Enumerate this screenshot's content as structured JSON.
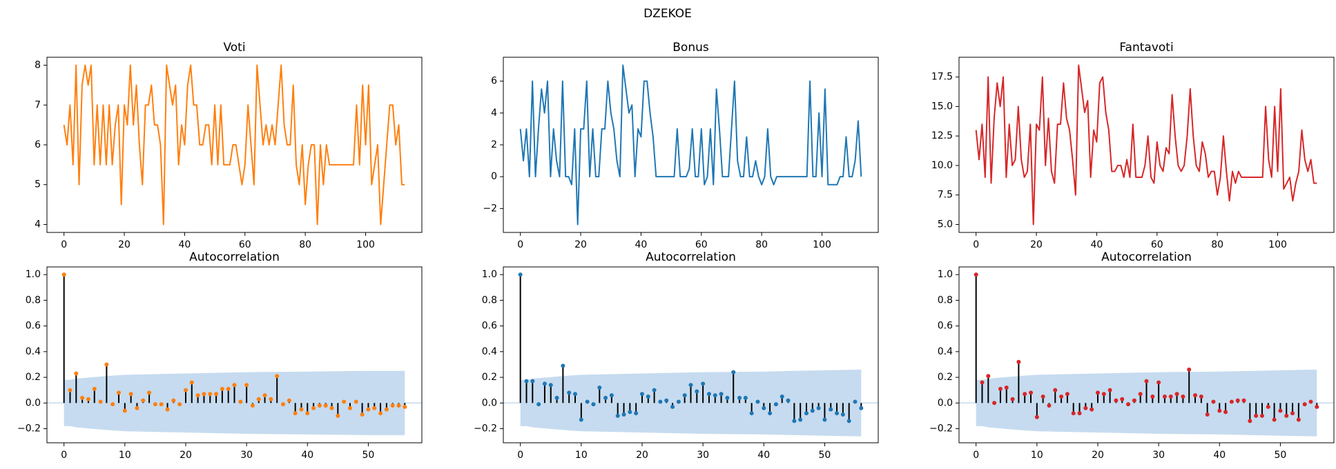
{
  "title": "DZEKOE",
  "chart_data": [
    {
      "type": "line",
      "title": "Voti",
      "color": "#ff7f0e",
      "x": [
        0,
        1,
        2,
        3,
        4,
        5,
        6,
        7,
        8,
        9,
        10,
        11,
        12,
        13,
        14,
        15,
        16,
        17,
        18,
        19,
        20,
        21,
        22,
        23,
        24,
        25,
        26,
        27,
        28,
        29,
        30,
        31,
        32,
        33,
        34,
        35,
        36,
        37,
        38,
        39,
        40,
        41,
        42,
        43,
        44,
        45,
        46,
        47,
        48,
        49,
        50,
        51,
        52,
        53,
        54,
        55,
        56,
        57,
        58,
        59,
        60,
        61,
        62,
        63,
        64,
        65,
        66,
        67,
        68,
        69,
        70,
        71,
        72,
        73,
        74,
        75,
        76,
        77,
        78,
        79,
        80,
        81,
        82,
        83,
        84,
        85,
        86,
        87,
        88,
        95,
        96,
        97,
        98,
        99,
        100,
        101,
        102,
        103,
        104,
        105,
        106,
        107,
        108,
        109,
        110,
        111,
        112,
        113
      ],
      "values": [
        6.5,
        6,
        7,
        5.5,
        8,
        5,
        7.5,
        8,
        7.5,
        8,
        5.5,
        7,
        5.5,
        7,
        5.5,
        7,
        5.5,
        6.5,
        7,
        4.5,
        7,
        6.5,
        8,
        6.5,
        7.5,
        6,
        5,
        7,
        7,
        7.5,
        6.5,
        6.5,
        6,
        4,
        8,
        7.5,
        7,
        7.5,
        5.5,
        6.5,
        6,
        7.5,
        8,
        7,
        7,
        6,
        6,
        6.5,
        6.5,
        5.5,
        7,
        5.5,
        7,
        5.5,
        5.5,
        5.5,
        6,
        6,
        5.5,
        5,
        5.5,
        7,
        6,
        5,
        8,
        7,
        6,
        6.5,
        6,
        6.5,
        6,
        7,
        8,
        6.5,
        6,
        6,
        7.5,
        5.5,
        5,
        6,
        4.5,
        5.5,
        6,
        6,
        4,
        6,
        5,
        6,
        5.5,
        5.5,
        5.5,
        7,
        5.5,
        7.5,
        6,
        7.5,
        5,
        5.5,
        6,
        4,
        5,
        6,
        7,
        7,
        6,
        6.5,
        5,
        5
      ],
      "xlim": [
        -5.65,
        118.65
      ],
      "xticks": [
        0,
        20,
        40,
        60,
        80,
        100
      ],
      "ylim": [
        3.8,
        8.2
      ],
      "yticks": [
        4,
        5,
        6,
        7,
        8
      ]
    },
    {
      "type": "line",
      "title": "Bonus",
      "color": "#1f77b4",
      "x": [
        0,
        1,
        2,
        3,
        4,
        5,
        6,
        7,
        8,
        9,
        10,
        11,
        12,
        13,
        14,
        15,
        16,
        17,
        18,
        19,
        20,
        21,
        22,
        23,
        24,
        25,
        26,
        27,
        28,
        29,
        30,
        31,
        32,
        33,
        34,
        35,
        36,
        37,
        38,
        39,
        40,
        41,
        42,
        43,
        44,
        45,
        46,
        47,
        48,
        49,
        50,
        51,
        52,
        53,
        54,
        55,
        56,
        57,
        58,
        59,
        60,
        61,
        62,
        63,
        64,
        65,
        66,
        67,
        68,
        69,
        70,
        71,
        72,
        73,
        74,
        75,
        76,
        77,
        78,
        79,
        80,
        81,
        82,
        83,
        84,
        85,
        86,
        87,
        88,
        95,
        96,
        97,
        98,
        99,
        100,
        101,
        102,
        103,
        104,
        105,
        106,
        107,
        108,
        109,
        110,
        111,
        112,
        113
      ],
      "values": [
        3,
        1,
        3,
        0,
        6,
        0,
        3,
        5.5,
        4,
        6,
        0,
        3,
        1,
        0,
        6,
        0,
        0,
        -0.5,
        3,
        -3,
        3,
        3,
        6,
        0,
        3,
        0,
        0,
        3,
        3,
        6,
        4,
        3,
        1,
        0,
        7,
        5.5,
        4,
        4.5,
        0,
        3,
        2.5,
        6,
        6,
        4,
        2.5,
        0,
        0,
        0,
        0,
        0,
        0,
        0,
        3,
        0,
        0,
        0,
        0.5,
        3,
        0,
        0,
        3,
        -0.5,
        0,
        3,
        -0.5,
        5.5,
        3,
        0,
        0,
        0,
        3,
        6,
        1,
        0,
        0,
        2.5,
        0,
        0,
        1,
        0,
        -0.5,
        0,
        3,
        0,
        -0.5,
        0,
        0,
        0,
        0,
        0,
        6,
        0,
        0,
        4,
        0,
        5.5,
        -0.5,
        -0.5,
        -0.5,
        -0.5,
        0,
        0,
        2.5,
        0,
        0,
        1,
        3.5,
        0
      ],
      "xlim": [
        -5.65,
        118.65
      ],
      "xticks": [
        0,
        20,
        40,
        60,
        80,
        100
      ],
      "ylim": [
        -3.5,
        7.5
      ],
      "yticks": [
        {
          "value": -2,
          "label": "−2"
        },
        0,
        2,
        4,
        6
      ]
    },
    {
      "type": "line",
      "title": "Fantavoti",
      "color": "#d62728",
      "x": [
        0,
        1,
        2,
        3,
        4,
        5,
        6,
        7,
        8,
        9,
        10,
        11,
        12,
        13,
        14,
        15,
        16,
        17,
        18,
        19,
        20,
        21,
        22,
        23,
        24,
        25,
        26,
        27,
        28,
        29,
        30,
        31,
        32,
        33,
        34,
        35,
        36,
        37,
        38,
        39,
        40,
        41,
        42,
        43,
        44,
        45,
        46,
        47,
        48,
        49,
        50,
        51,
        52,
        53,
        54,
        55,
        56,
        57,
        58,
        59,
        60,
        61,
        62,
        63,
        64,
        65,
        66,
        67,
        68,
        69,
        70,
        71,
        72,
        73,
        74,
        75,
        76,
        77,
        78,
        79,
        80,
        81,
        82,
        83,
        84,
        85,
        86,
        87,
        88,
        95,
        96,
        97,
        98,
        99,
        100,
        101,
        102,
        103,
        104,
        105,
        106,
        107,
        108,
        109,
        110,
        111,
        112,
        113
      ],
      "values": [
        13,
        10.5,
        13.5,
        9,
        17.5,
        8.5,
        14,
        17,
        15,
        17.5,
        9,
        13.5,
        10,
        10.5,
        15,
        10.5,
        9,
        9.5,
        13.5,
        5,
        13.5,
        13,
        17.5,
        10,
        14,
        9.5,
        8.5,
        13.5,
        13.5,
        17,
        14,
        13,
        10.5,
        7.5,
        18.5,
        16.5,
        14.5,
        15.5,
        9,
        13,
        12,
        17,
        17.5,
        14.5,
        13,
        9.5,
        9.5,
        10,
        10,
        9,
        10.5,
        9,
        13.5,
        9,
        9,
        9,
        10,
        12.5,
        9,
        8.5,
        12,
        10,
        9.5,
        11.5,
        11,
        16,
        12.5,
        10,
        9.5,
        10,
        12.5,
        16.5,
        12.5,
        10,
        9.5,
        12,
        11,
        9,
        9.5,
        9.5,
        7.5,
        9,
        12.5,
        9.5,
        7,
        9.5,
        8.5,
        9.5,
        9,
        9,
        15,
        10.5,
        9,
        15,
        9.5,
        16.5,
        8,
        8.5,
        9,
        7,
        8.5,
        9.5,
        13,
        10.5,
        9.5,
        10.5,
        8.5,
        8.5
      ],
      "xlim": [
        -5.65,
        118.65
      ],
      "xticks": [
        0,
        20,
        40,
        60,
        80,
        100
      ],
      "ylim": [
        4.325,
        19.175
      ],
      "yticks": [
        {
          "value": 5,
          "label": "5.0"
        },
        7.5,
        {
          "value": 10,
          "label": "10.0"
        },
        12.5,
        {
          "value": 15,
          "label": "15.0"
        },
        17.5
      ]
    },
    {
      "type": "stem",
      "title": "Autocorrelation",
      "color": "#ff7f0e",
      "x": [
        0,
        1,
        2,
        3,
        4,
        5,
        6,
        7,
        8,
        9,
        10,
        11,
        12,
        13,
        14,
        15,
        16,
        17,
        18,
        19,
        20,
        21,
        22,
        23,
        24,
        25,
        26,
        27,
        28,
        29,
        30,
        31,
        32,
        33,
        34,
        35,
        36,
        37,
        38,
        39,
        40,
        41,
        42,
        43,
        44,
        45,
        46,
        47,
        48,
        49,
        50,
        51,
        52,
        53,
        54,
        55,
        56
      ],
      "values": [
        1,
        0.1,
        0.23,
        0.04,
        0.03,
        0.11,
        0.01,
        0.3,
        -0.01,
        0.08,
        -0.06,
        0.07,
        -0.04,
        0.02,
        0.08,
        -0.01,
        -0.01,
        -0.05,
        0.02,
        -0.01,
        0.1,
        0.16,
        0.06,
        0.07,
        0.07,
        0.07,
        0.11,
        0.11,
        0.14,
        0.01,
        0.14,
        -0.02,
        0.03,
        0.06,
        0.03,
        0.21,
        -0.01,
        0.02,
        -0.08,
        -0.05,
        -0.08,
        -0.04,
        -0.02,
        -0.02,
        -0.04,
        -0.1,
        0.01,
        -0.04,
        0.01,
        -0.09,
        -0.05,
        -0.04,
        -0.08,
        -0.05,
        -0.02,
        -0.02,
        -0.03
      ],
      "band": {
        "color": "#c6dbef",
        "x": [
          0,
          1,
          2,
          7,
          10,
          20,
          30,
          40,
          50,
          56
        ],
        "upper": [
          0.18,
          0.18,
          0.19,
          0.21,
          0.22,
          0.23,
          0.24,
          0.245,
          0.25,
          0.25
        ],
        "lower": [
          -0.18,
          -0.18,
          -0.19,
          -0.21,
          -0.22,
          -0.23,
          -0.24,
          -0.245,
          -0.25,
          -0.25
        ]
      },
      "xlim": [
        -2.8,
        58.8
      ],
      "xticks": [
        0,
        10,
        20,
        30,
        40,
        50
      ],
      "ylim": [
        -0.31,
        1.06
      ],
      "yticks": [
        {
          "value": -0.2,
          "label": "−0.2"
        },
        {
          "value": 0,
          "label": "0.0"
        },
        0.2,
        0.4,
        0.6,
        0.8,
        {
          "value": 1,
          "label": "1.0"
        }
      ]
    },
    {
      "type": "stem",
      "title": "Autocorrelation",
      "color": "#1f77b4",
      "x": [
        0,
        1,
        2,
        3,
        4,
        5,
        6,
        7,
        8,
        9,
        10,
        11,
        12,
        13,
        14,
        15,
        16,
        17,
        18,
        19,
        20,
        21,
        22,
        23,
        24,
        25,
        26,
        27,
        28,
        29,
        30,
        31,
        32,
        33,
        34,
        35,
        36,
        37,
        38,
        39,
        40,
        41,
        42,
        43,
        44,
        45,
        46,
        47,
        48,
        49,
        50,
        51,
        52,
        53,
        54,
        55,
        56
      ],
      "values": [
        1,
        0.17,
        0.17,
        -0.01,
        0.15,
        0.14,
        0.04,
        0.29,
        0.08,
        0.07,
        -0.13,
        0.01,
        -0.01,
        0.12,
        0.04,
        0.06,
        -0.1,
        -0.09,
        -0.07,
        -0.08,
        0.07,
        0.05,
        0.1,
        0.01,
        0.02,
        -0.03,
        0.01,
        0.06,
        0.14,
        0.09,
        0.15,
        0.07,
        0.06,
        0.07,
        0.04,
        0.24,
        0.04,
        0.04,
        -0.08,
        0.01,
        -0.04,
        -0.08,
        -0.01,
        0.05,
        0.02,
        -0.14,
        -0.13,
        -0.08,
        -0.06,
        -0.04,
        -0.13,
        -0.05,
        -0.08,
        -0.09,
        -0.14,
        0.01,
        -0.04
      ],
      "band": {
        "color": "#c6dbef",
        "x": [
          0,
          1,
          2,
          7,
          10,
          20,
          30,
          40,
          50,
          56
        ],
        "upper": [
          0.18,
          0.18,
          0.19,
          0.21,
          0.22,
          0.23,
          0.24,
          0.245,
          0.255,
          0.26
        ],
        "lower": [
          -0.18,
          -0.18,
          -0.19,
          -0.21,
          -0.22,
          -0.23,
          -0.24,
          -0.245,
          -0.255,
          -0.26
        ]
      },
      "xlim": [
        -2.8,
        58.8
      ],
      "xticks": [
        0,
        10,
        20,
        30,
        40,
        50
      ],
      "ylim": [
        -0.31,
        1.06
      ],
      "yticks": [
        {
          "value": -0.2,
          "label": "−0.2"
        },
        {
          "value": 0,
          "label": "0.0"
        },
        0.2,
        0.4,
        0.6,
        0.8,
        {
          "value": 1,
          "label": "1.0"
        }
      ]
    },
    {
      "type": "stem",
      "title": "Autocorrelation",
      "color": "#d62728",
      "x": [
        0,
        1,
        2,
        3,
        4,
        5,
        6,
        7,
        8,
        9,
        10,
        11,
        12,
        13,
        14,
        15,
        16,
        17,
        18,
        19,
        20,
        21,
        22,
        23,
        24,
        25,
        26,
        27,
        28,
        29,
        30,
        31,
        32,
        33,
        34,
        35,
        36,
        37,
        38,
        39,
        40,
        41,
        42,
        43,
        44,
        45,
        46,
        47,
        48,
        49,
        50,
        51,
        52,
        53,
        54,
        55,
        56
      ],
      "values": [
        1,
        0.16,
        0.21,
        0,
        0.11,
        0.12,
        0.03,
        0.32,
        0.07,
        0.08,
        -0.11,
        0.05,
        -0.02,
        0.1,
        0.05,
        0.07,
        -0.08,
        -0.08,
        -0.04,
        -0.05,
        0.08,
        0.07,
        0.1,
        0.02,
        0.03,
        -0.01,
        0.02,
        0.07,
        0.17,
        0.05,
        0.16,
        0.05,
        0.05,
        0.07,
        0.05,
        0.26,
        0.06,
        0.05,
        -0.09,
        0.01,
        -0.06,
        -0.07,
        0.01,
        0.02,
        0.02,
        -0.14,
        -0.1,
        -0.1,
        -0.03,
        -0.13,
        -0.06,
        -0.1,
        -0.08,
        -0.13,
        -0.01,
        0.01,
        -0.03
      ],
      "band": {
        "color": "#c6dbef",
        "x": [
          0,
          1,
          2,
          7,
          10,
          20,
          30,
          40,
          50,
          56
        ],
        "upper": [
          0.18,
          0.18,
          0.19,
          0.21,
          0.22,
          0.23,
          0.24,
          0.245,
          0.255,
          0.26
        ],
        "lower": [
          -0.18,
          -0.18,
          -0.19,
          -0.21,
          -0.22,
          -0.23,
          -0.24,
          -0.245,
          -0.255,
          -0.26
        ]
      },
      "xlim": [
        -2.8,
        58.8
      ],
      "xticks": [
        0,
        10,
        20,
        30,
        40,
        50
      ],
      "ylim": [
        -0.31,
        1.06
      ],
      "yticks": [
        {
          "value": -0.2,
          "label": "−0.2"
        },
        {
          "value": 0,
          "label": "0.0"
        },
        0.2,
        0.4,
        0.6,
        0.8,
        {
          "value": 1,
          "label": "1.0"
        }
      ]
    }
  ]
}
